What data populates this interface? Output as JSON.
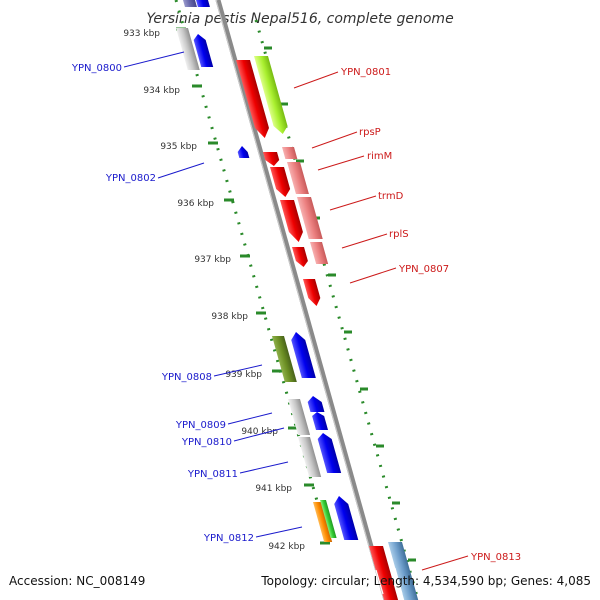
{
  "title": "Yersinia pestis Nepal516, complete genome",
  "accession": "Accession: NC_008149",
  "topology": "Topology: circular; Length: 4,534,590 bp; Genes: 4,085",
  "colors": {
    "backbone": "#8a8a8a",
    "left_labels": "#1a1acc",
    "right_labels": "#cc1a1a",
    "tick_dots": "#2a8a2a"
  },
  "kbp_ticks": [
    "933 kbp",
    "934 kbp",
    "935 kbp",
    "936 kbp",
    "937 kbp",
    "938 kbp",
    "939 kbp",
    "940 kbp",
    "941 kbp",
    "942 kbp"
  ],
  "left_genes": [
    "YPN_0800",
    "YPN_0802",
    "YPN_0808",
    "YPN_0809",
    "YPN_0810",
    "YPN_0811",
    "YPN_0812"
  ],
  "right_genes": [
    "YPN_0801",
    "rpsP",
    "rimM",
    "trmD",
    "rplS",
    "YPN_0807",
    "YPN_0813"
  ]
}
